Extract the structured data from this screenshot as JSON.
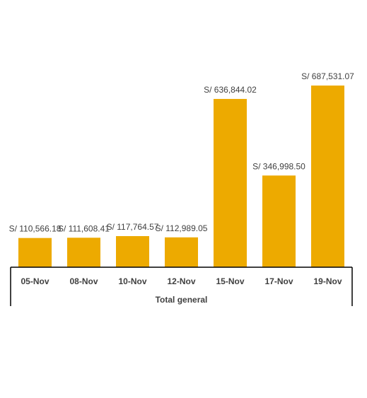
{
  "chart_data": {
    "type": "bar",
    "title": "",
    "xlabel": "",
    "ylabel": "",
    "group_label": "Total general",
    "categories": [
      "05-Nov",
      "08-Nov",
      "10-Nov",
      "12-Nov",
      "15-Nov",
      "17-Nov",
      "19-Nov"
    ],
    "values": [
      110566.18,
      111608.41,
      117764.57,
      112989.05,
      636844.02,
      346998.5,
      687531.07
    ],
    "data_labels": [
      "S/ 110,566.18",
      "S/ 111,608.41",
      "S/ 117,764.57",
      "S/ 112,989.05",
      "S/ 636,844.02",
      "S/ 346,998.50",
      "S/ 687,531.07"
    ],
    "ylim": [
      0,
      687531.07
    ],
    "grid": false,
    "legend": "none",
    "bar_color": "#EDAA00",
    "text_color": "#404040",
    "axis_color": "#000000"
  }
}
